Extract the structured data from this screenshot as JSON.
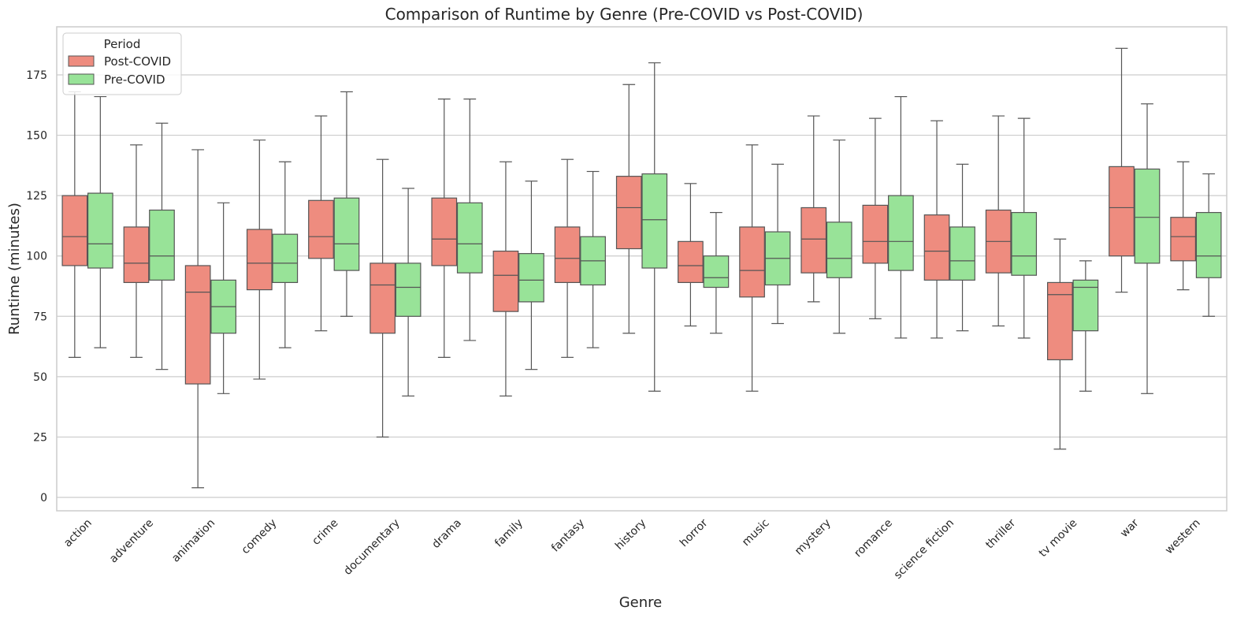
{
  "chart_data": {
    "type": "box",
    "title": "Comparison of Runtime by Genre (Pre-COVID vs Post-COVID)",
    "xlabel": "Genre",
    "ylabel": "Runtime (minutes)",
    "ylim": [
      -5,
      195
    ],
    "yticks": [
      0,
      25,
      50,
      75,
      100,
      125,
      150,
      175
    ],
    "grid": true,
    "legend": {
      "title": "Period",
      "placement": "top-left"
    },
    "categories": [
      "action",
      "adventure",
      "animation",
      "comedy",
      "crime",
      "documentary",
      "drama",
      "family",
      "fantasy",
      "history",
      "horror",
      "music",
      "mystery",
      "romance",
      "science fiction",
      "thriller",
      "tv movie",
      "war",
      "western"
    ],
    "series": [
      {
        "name": "Post-COVID",
        "color": "#EE8C7F",
        "boxes": [
          {
            "whislo": 58,
            "q1": 96,
            "med": 108,
            "q3": 125,
            "whishi": 168
          },
          {
            "whislo": 58,
            "q1": 89,
            "med": 97,
            "q3": 112,
            "whishi": 146
          },
          {
            "whislo": 4,
            "q1": 47,
            "med": 85,
            "q3": 96,
            "whishi": 144
          },
          {
            "whislo": 49,
            "q1": 86,
            "med": 97,
            "q3": 111,
            "whishi": 148
          },
          {
            "whislo": 69,
            "q1": 99,
            "med": 108,
            "q3": 123,
            "whishi": 158
          },
          {
            "whislo": 25,
            "q1": 68,
            "med": 88,
            "q3": 97,
            "whishi": 140
          },
          {
            "whislo": 58,
            "q1": 96,
            "med": 107,
            "q3": 124,
            "whishi": 165
          },
          {
            "whislo": 42,
            "q1": 77,
            "med": 92,
            "q3": 102,
            "whishi": 139
          },
          {
            "whislo": 58,
            "q1": 89,
            "med": 99,
            "q3": 112,
            "whishi": 140
          },
          {
            "whislo": 68,
            "q1": 103,
            "med": 120,
            "q3": 133,
            "whishi": 171
          },
          {
            "whislo": 71,
            "q1": 89,
            "med": 96,
            "q3": 106,
            "whishi": 130
          },
          {
            "whislo": 44,
            "q1": 83,
            "med": 94,
            "q3": 112,
            "whishi": 146
          },
          {
            "whislo": 81,
            "q1": 93,
            "med": 107,
            "q3": 120,
            "whishi": 158
          },
          {
            "whislo": 74,
            "q1": 97,
            "med": 106,
            "q3": 121,
            "whishi": 157
          },
          {
            "whislo": 66,
            "q1": 90,
            "med": 102,
            "q3": 117,
            "whishi": 156
          },
          {
            "whislo": 71,
            "q1": 93,
            "med": 106,
            "q3": 119,
            "whishi": 158
          },
          {
            "whislo": 20,
            "q1": 57,
            "med": 84,
            "q3": 89,
            "whishi": 107
          },
          {
            "whislo": 85,
            "q1": 100,
            "med": 120,
            "q3": 137,
            "whishi": 186
          },
          {
            "whislo": 86,
            "q1": 98,
            "med": 108,
            "q3": 116,
            "whishi": 139
          }
        ]
      },
      {
        "name": "Pre-COVID",
        "color": "#98E398",
        "boxes": [
          {
            "whislo": 62,
            "q1": 95,
            "med": 105,
            "q3": 126,
            "whishi": 166
          },
          {
            "whislo": 53,
            "q1": 90,
            "med": 100,
            "q3": 119,
            "whishi": 155
          },
          {
            "whislo": 43,
            "q1": 68,
            "med": 79,
            "q3": 90,
            "whishi": 122
          },
          {
            "whislo": 62,
            "q1": 89,
            "med": 97,
            "q3": 109,
            "whishi": 139
          },
          {
            "whislo": 75,
            "q1": 94,
            "med": 105,
            "q3": 124,
            "whishi": 168
          },
          {
            "whislo": 42,
            "q1": 75,
            "med": 87,
            "q3": 97,
            "whishi": 128
          },
          {
            "whislo": 65,
            "q1": 93,
            "med": 105,
            "q3": 122,
            "whishi": 165
          },
          {
            "whislo": 53,
            "q1": 81,
            "med": 90,
            "q3": 101,
            "whishi": 131
          },
          {
            "whislo": 62,
            "q1": 88,
            "med": 98,
            "q3": 108,
            "whishi": 135
          },
          {
            "whislo": 44,
            "q1": 95,
            "med": 115,
            "q3": 134,
            "whishi": 180
          },
          {
            "whislo": 68,
            "q1": 87,
            "med": 91,
            "q3": 100,
            "whishi": 118
          },
          {
            "whislo": 72,
            "q1": 88,
            "med": 99,
            "q3": 110,
            "whishi": 138
          },
          {
            "whislo": 68,
            "q1": 91,
            "med": 99,
            "q3": 114,
            "whishi": 148
          },
          {
            "whislo": 66,
            "q1": 94,
            "med": 106,
            "q3": 125,
            "whishi": 166
          },
          {
            "whislo": 69,
            "q1": 90,
            "med": 98,
            "q3": 112,
            "whishi": 138
          },
          {
            "whislo": 66,
            "q1": 92,
            "med": 100,
            "q3": 118,
            "whishi": 157
          },
          {
            "whislo": 44,
            "q1": 69,
            "med": 87,
            "q3": 90,
            "whishi": 98
          },
          {
            "whislo": 43,
            "q1": 97,
            "med": 116,
            "q3": 136,
            "whishi": 163
          },
          {
            "whislo": 75,
            "q1": 91,
            "med": 100,
            "q3": 118,
            "whishi": 134
          }
        ]
      }
    ]
  }
}
